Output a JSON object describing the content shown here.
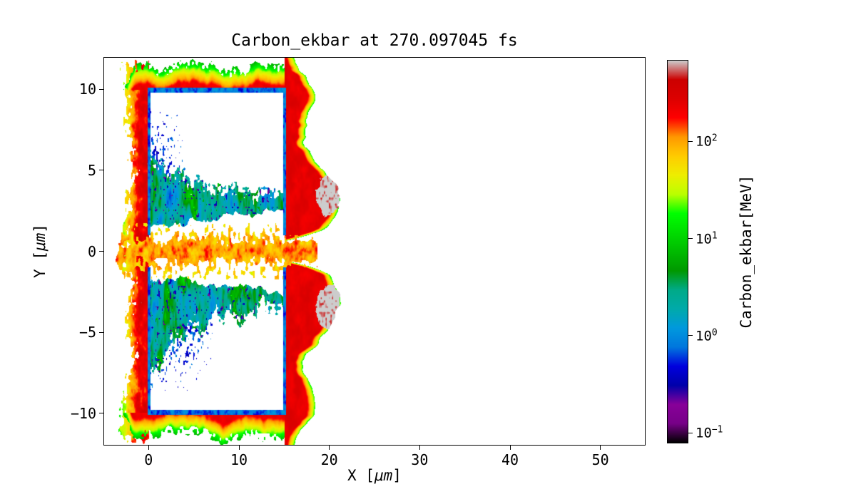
{
  "chart_data": {
    "type": "heatmap",
    "title": "Carbon_ekbar at 270.097045 fs",
    "xlabel": {
      "pre": "X [",
      "unit": "μm",
      "post": "]"
    },
    "ylabel": {
      "pre": "Y [",
      "unit": "μm",
      "post": "]"
    },
    "x_range": [
      -5,
      55
    ],
    "y_range": [
      -12,
      12
    ],
    "x_ticks": [
      {
        "v": 0,
        "label": "0"
      },
      {
        "v": 10,
        "label": "10"
      },
      {
        "v": 20,
        "label": "20"
      },
      {
        "v": 30,
        "label": "30"
      },
      {
        "v": 40,
        "label": "40"
      },
      {
        "v": 50,
        "label": "50"
      }
    ],
    "y_ticks": [
      {
        "v": -10,
        "label": "−10"
      },
      {
        "v": -5,
        "label": "−5"
      },
      {
        "v": 0,
        "label": "0"
      },
      {
        "v": 5,
        "label": "5"
      },
      {
        "v": 10,
        "label": "10"
      }
    ],
    "grid": false,
    "colorbar": {
      "label": "Carbon_ekbar[MeV]",
      "scale": "log",
      "log10_min": -1.11,
      "log10_max": 2.84,
      "ticks": [
        {
          "exp": 2,
          "base": "10",
          "sup": "2"
        },
        {
          "exp": 1,
          "base": "10",
          "sup": "1"
        },
        {
          "exp": 0,
          "base": "10",
          "sup": "0"
        },
        {
          "exp": -1,
          "base": "10",
          "sup": "−1"
        }
      ]
    },
    "colormap": {
      "name": "nipy_spectral",
      "stops": [
        [
          0.0,
          "#000000"
        ],
        [
          0.05,
          "#770088"
        ],
        [
          0.1,
          "#880099"
        ],
        [
          0.15,
          "#0000aa"
        ],
        [
          0.2,
          "#0000dd"
        ],
        [
          0.25,
          "#0077dd"
        ],
        [
          0.3,
          "#0099dd"
        ],
        [
          0.35,
          "#00aaaa"
        ],
        [
          0.4,
          "#00aa88"
        ],
        [
          0.45,
          "#009900"
        ],
        [
          0.5,
          "#00bb00"
        ],
        [
          0.55,
          "#00dd00"
        ],
        [
          0.6,
          "#00ff00"
        ],
        [
          0.65,
          "#bbff00"
        ],
        [
          0.7,
          "#eeee00"
        ],
        [
          0.75,
          "#ffcc00"
        ],
        [
          0.8,
          "#ff9900"
        ],
        [
          0.85,
          "#ff0000"
        ],
        [
          0.9,
          "#dd0000"
        ],
        [
          0.95,
          "#cc0000"
        ],
        [
          1.0,
          "#cccccc"
        ]
      ]
    },
    "structure": {
      "target_box": {
        "x0": 0,
        "x1": 15,
        "y0": -10,
        "y1": 10
      },
      "shell_log10_v": 2.38,
      "right_boundary": {
        "lobe_y": 3.1,
        "lobe_sigma": 2.4,
        "lobe_amp": 6.3,
        "corner_y": 9.8,
        "corner_sigma": 1.5,
        "corner_amp": 3.0,
        "notch_sigma": 0.55,
        "notch_amp": 7.0,
        "jitter": 0.9
      },
      "left_halo": {
        "x_min": -4.8,
        "decay_per_um": 0.48
      },
      "top_bottom_halo": {
        "base": 1.0,
        "amp": 1.3,
        "x_start": -3.2,
        "x_end": 17.4
      },
      "gray_patches": [
        {
          "x": 19.9,
          "y": 3.5,
          "r": 1.25
        },
        {
          "x": 19.9,
          "y": -3.5,
          "r": 1.35
        }
      ],
      "interior_bands": {
        "center_abs_y": 3.1,
        "halfwidth_x0": 2.0,
        "halfwidth_slope": 0.095,
        "upper_left_extra": 1.2,
        "lower_left_extra": 2.6
      },
      "mid_channel": {
        "halfwidth": 1.75,
        "x_max": 18.7,
        "log10_v_base": 1.35
      },
      "speckle_clouds": [
        {
          "x_max": 4.0,
          "y_min": 4.6,
          "y_max": 8.7,
          "density": 0.5
        },
        {
          "x_max": 7.0,
          "y_min": -8.7,
          "y_max": -4.4,
          "density": 0.6
        }
      ],
      "border_thickness": 0.15
    }
  }
}
